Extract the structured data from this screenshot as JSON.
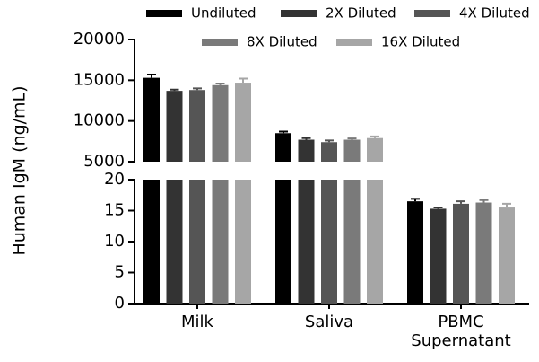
{
  "chart_data": {
    "type": "bar",
    "y_label": "Human IgM (ng/mL)",
    "categories": [
      "Milk",
      "Saliva",
      "PBMC Supernatant"
    ],
    "series": [
      {
        "name": "Undiluted",
        "color": "#000000",
        "values": [
          15300,
          8500,
          16.5
        ],
        "errors": [
          400,
          200,
          0.4
        ]
      },
      {
        "name": "2X Diluted",
        "color": "#333333",
        "values": [
          13700,
          7700,
          15.3
        ],
        "errors": [
          150,
          200,
          0.2
        ]
      },
      {
        "name": "4X Diluted",
        "color": "#555555",
        "values": [
          13800,
          7400,
          16.1
        ],
        "errors": [
          200,
          200,
          0.4
        ]
      },
      {
        "name": "8X Diluted",
        "color": "#7a7a7a",
        "values": [
          14400,
          7700,
          16.3
        ],
        "errors": [
          200,
          150,
          0.4
        ]
      },
      {
        "name": "16X Diluted",
        "color": "#a6a6a6",
        "values": [
          14700,
          7900,
          15.5
        ],
        "errors": [
          500,
          200,
          0.6
        ]
      }
    ],
    "axis_break": {
      "lower": {
        "ylim": [
          0,
          20
        ],
        "yticks": [
          0,
          5,
          10,
          15,
          20
        ]
      },
      "upper": {
        "ylim": [
          5000,
          20000
        ],
        "yticks": [
          5000,
          10000,
          15000,
          20000
        ]
      }
    }
  }
}
